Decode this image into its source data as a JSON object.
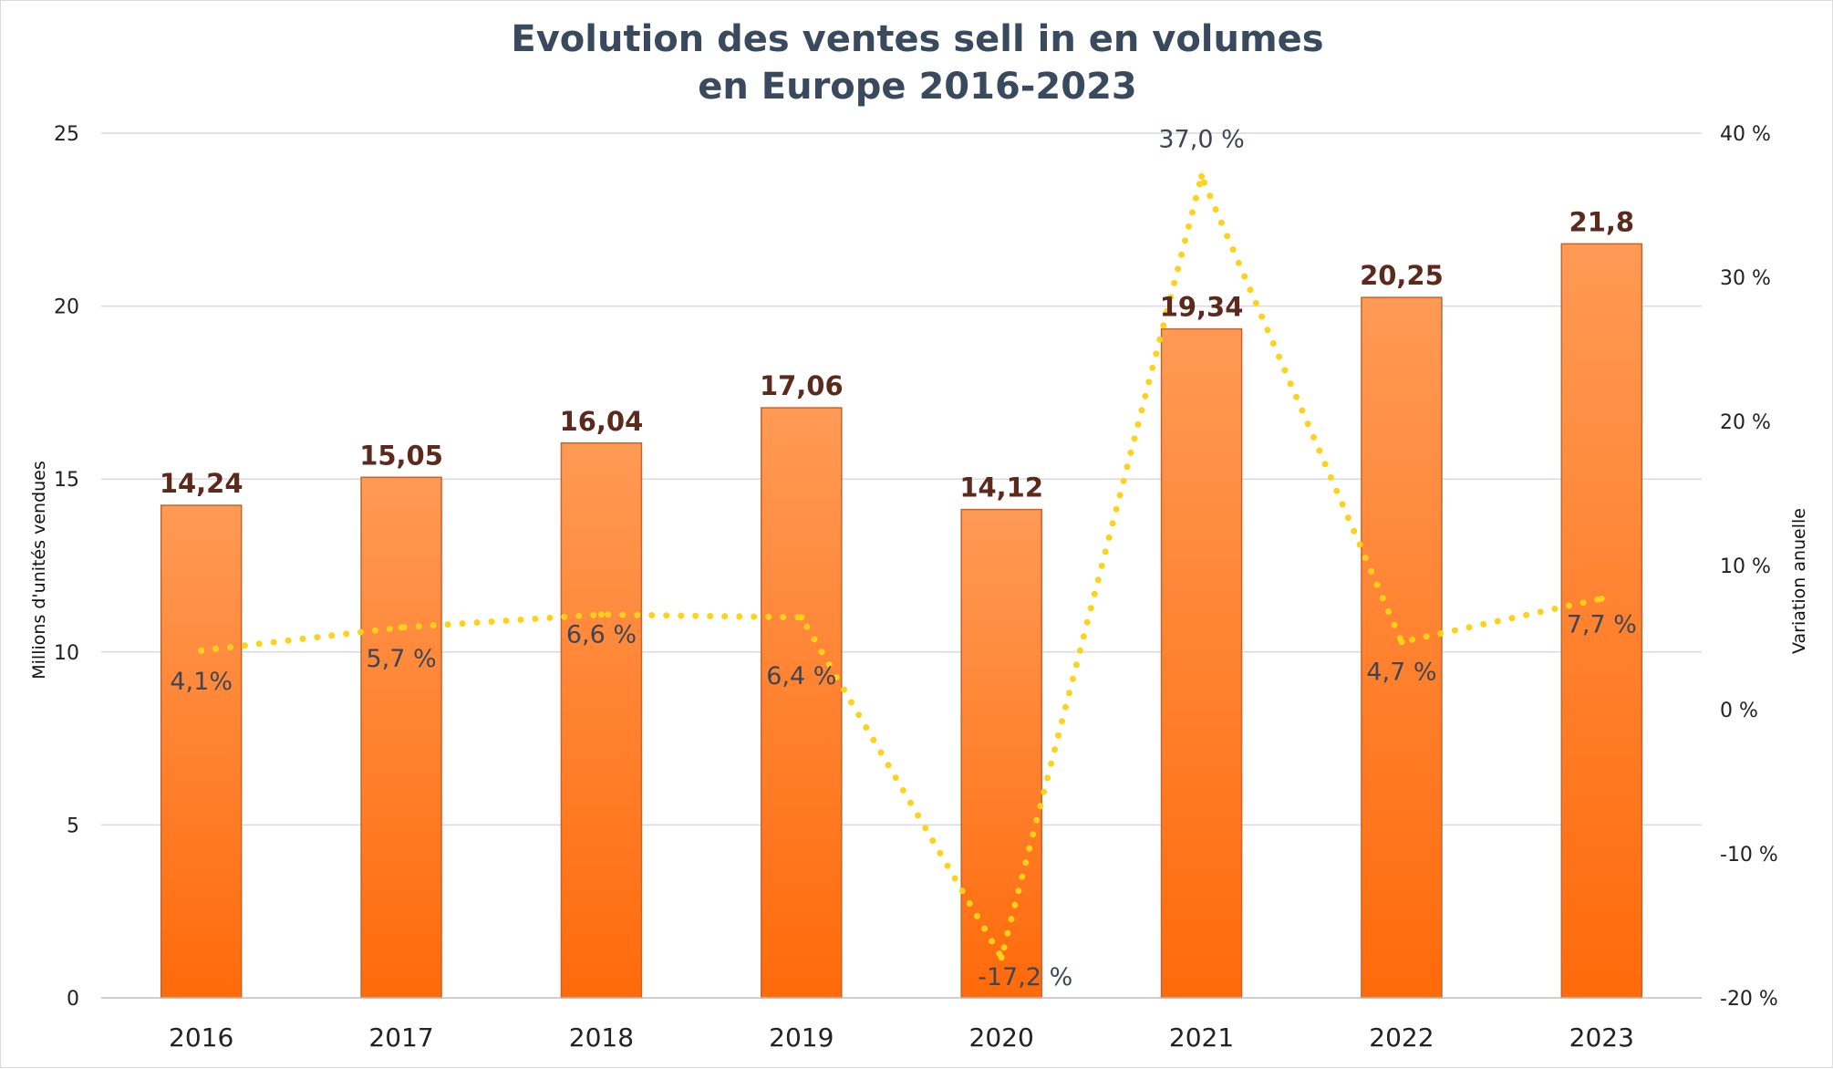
{
  "chart_data": {
    "type": "bar",
    "title_lines": [
      "Evolution des ventes sell in en volumes",
      "en Europe 2016-2023"
    ],
    "categories": [
      "2016",
      "2017",
      "2018",
      "2019",
      "2020",
      "2021",
      "2022",
      "2023"
    ],
    "ylabel": "Millions d'unités vendues",
    "ylabel_right": "Variation anuelle",
    "ylim": [
      0,
      25
    ],
    "yticks": [
      "0",
      "5",
      "10",
      "15",
      "20",
      "25"
    ],
    "ylim_right": [
      -20,
      40
    ],
    "yticks_right": [
      "-20 %",
      "-10 %",
      "0 %",
      "10 %",
      "20 %",
      "30 %",
      "40 %"
    ],
    "grid": true,
    "series": [
      {
        "type": "bar",
        "values": [
          14.24,
          15.05,
          16.04,
          17.06,
          14.12,
          19.34,
          20.25,
          21.8
        ],
        "labels": [
          "14,24",
          "15,05",
          "16,04",
          "17,06",
          "14,12",
          "19,34",
          "20,25",
          "21,8"
        ],
        "color": "#ff7a1f"
      },
      {
        "type": "line",
        "axis": "right",
        "style": "dotted",
        "values": [
          4.1,
          5.7,
          6.6,
          6.4,
          -17.2,
          37.0,
          4.7,
          7.7
        ],
        "labels": [
          "4,1%",
          "5,7 %",
          "6,6 %",
          "6,4 %",
          "-17,2 %",
          "37,0 %",
          "4,7 %",
          "7,7 %"
        ],
        "color": "#ffd11a"
      }
    ],
    "colors": {
      "bar_top": "#ff9a55",
      "bar_bottom": "#ff6a0a",
      "bar_edge": "#c8632a",
      "line": "#ffd11a"
    }
  }
}
